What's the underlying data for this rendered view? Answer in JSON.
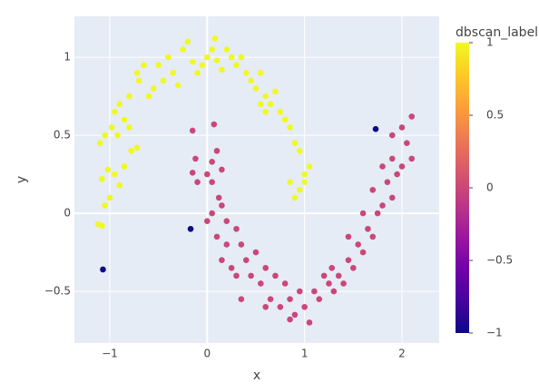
{
  "chart_data": {
    "type": "scatter",
    "xlabel": "x",
    "ylabel": "y",
    "xlim": [
      -1.363,
      2.382
    ],
    "ylim": [
      -0.831,
      1.262
    ],
    "xticks": [
      {
        "value": -1,
        "label": "−1"
      },
      0,
      1,
      2
    ],
    "yticks": [
      {
        "value": -0.5,
        "label": "−0.5"
      },
      0,
      0.5,
      1
    ],
    "grid": true,
    "background": "#e5ecf6",
    "x": [
      -1.12,
      -1.08,
      -1.05,
      -1.0,
      -1.08,
      -1.02,
      -0.95,
      -0.9,
      -0.85,
      -1.1,
      -1.05,
      -0.98,
      -0.92,
      -0.85,
      -0.8,
      -0.72,
      -0.78,
      -0.95,
      -0.9,
      -0.8,
      -0.7,
      -0.65,
      -0.72,
      -0.6,
      -0.55,
      -0.5,
      -0.45,
      -0.4,
      -0.35,
      -0.3,
      -0.25,
      -0.2,
      -0.15,
      -0.1,
      -0.05,
      0,
      0.05,
      0.08,
      0.1,
      0.15,
      0.2,
      0.25,
      0.3,
      0.35,
      0.4,
      0.45,
      0.5,
      0.55,
      0.6,
      0.65,
      0.7,
      0.75,
      0.8,
      0.85,
      0.9,
      0.95,
      1.05,
      1.0,
      0.95,
      0.85,
      0.9,
      1.0,
      0.6,
      0.55,
      -0.15,
      0.07,
      -0.12,
      -0.15,
      0,
      0.05,
      0.15,
      -0.1,
      0.12,
      0.05,
      0.15,
      0.2,
      0,
      0.1,
      0.2,
      0.3,
      0.35,
      0.15,
      0.25,
      0.3,
      0.4,
      0.45,
      0.5,
      0.55,
      0.6,
      0.65,
      0.7,
      0.75,
      0.8,
      0.85,
      0.9,
      0.95,
      1.0,
      1.05,
      1.1,
      1.15,
      1.2,
      1.25,
      1.3,
      1.35,
      1.4,
      1.45,
      1.5,
      1.55,
      1.6,
      1.65,
      1.7,
      1.75,
      1.8,
      1.7,
      1.85,
      1.9,
      1.95,
      2.0,
      1.9,
      2.05,
      2.1,
      2.0,
      2.1,
      1.9,
      1.8,
      1.6,
      1.45,
      0.35,
      0.6,
      0.85,
      1.28,
      0.1,
      0.05,
      1.73,
      -0.17,
      -1.07
    ],
    "y": [
      -0.07,
      -0.08,
      0.05,
      0.1,
      0.22,
      0.28,
      0.25,
      0.18,
      0.3,
      0.45,
      0.5,
      0.55,
      0.5,
      0.6,
      0.55,
      0.42,
      0.4,
      0.65,
      0.7,
      0.75,
      0.85,
      0.95,
      0.9,
      0.75,
      0.8,
      0.95,
      0.85,
      1.0,
      0.9,
      0.82,
      1.05,
      1.1,
      0.97,
      0.9,
      0.95,
      1.0,
      1.05,
      1.12,
      0.98,
      0.92,
      1.05,
      1.0,
      0.95,
      1.0,
      0.9,
      0.85,
      0.8,
      0.9,
      0.75,
      0.7,
      0.78,
      0.65,
      0.6,
      0.55,
      0.45,
      0.4,
      0.3,
      0.2,
      0.15,
      0.2,
      0.1,
      0.25,
      0.65,
      0.7,
      0.53,
      0.57,
      0.35,
      0.26,
      0.25,
      0.2,
      0.28,
      0.2,
      0.1,
      0,
      0.05,
      -0.05,
      -0.05,
      -0.15,
      -0.2,
      -0.1,
      -0.2,
      -0.3,
      -0.35,
      -0.4,
      -0.3,
      -0.4,
      -0.25,
      -0.45,
      -0.35,
      -0.55,
      -0.4,
      -0.6,
      -0.45,
      -0.55,
      -0.65,
      -0.5,
      -0.6,
      -0.7,
      -0.5,
      -0.55,
      -0.4,
      -0.45,
      -0.5,
      -0.4,
      -0.45,
      -0.3,
      -0.35,
      -0.2,
      -0.25,
      -0.1,
      -0.15,
      0,
      0.05,
      0.15,
      0.2,
      0.1,
      0.25,
      0.3,
      0.35,
      0.45,
      0.35,
      0.55,
      0.62,
      0.5,
      0.3,
      0,
      -0.15,
      -0.55,
      -0.6,
      -0.68,
      -0.35,
      0.4,
      0.33,
      0.54,
      -0.1,
      -0.36
    ],
    "dbscan_label": [
      1,
      1,
      1,
      1,
      1,
      1,
      1,
      1,
      1,
      1,
      1,
      1,
      1,
      1,
      1,
      1,
      1,
      1,
      1,
      1,
      1,
      1,
      1,
      1,
      1,
      1,
      1,
      1,
      1,
      1,
      1,
      1,
      1,
      1,
      1,
      1,
      1,
      1,
      1,
      1,
      1,
      1,
      1,
      1,
      1,
      1,
      1,
      1,
      1,
      1,
      1,
      1,
      1,
      1,
      1,
      1,
      1,
      1,
      1,
      1,
      1,
      1,
      1,
      1,
      0,
      0,
      0,
      0,
      0,
      0,
      0,
      0,
      0,
      0,
      0,
      0,
      0,
      0,
      0,
      0,
      0,
      0,
      0,
      0,
      0,
      0,
      0,
      0,
      0,
      0,
      0,
      0,
      0,
      0,
      0,
      0,
      0,
      0,
      0,
      0,
      0,
      0,
      0,
      0,
      0,
      0,
      0,
      0,
      0,
      0,
      0,
      0,
      0,
      0,
      0,
      0,
      0,
      0,
      0,
      0,
      0,
      0,
      0,
      0,
      0,
      0,
      0,
      0,
      0,
      0,
      0,
      0,
      0,
      -1,
      -1,
      -1
    ],
    "colorbar": {
      "title": "dbscan_label",
      "lim": [
        -1,
        1
      ],
      "ticks": [
        {
          "value": -1,
          "label": "−1"
        },
        {
          "value": -0.5,
          "label": "−0.5"
        },
        0,
        0.5,
        1
      ],
      "colorscale": [
        [
          0,
          "#0d0887"
        ],
        [
          0.111,
          "#46039f"
        ],
        [
          0.222,
          "#7201a8"
        ],
        [
          0.333,
          "#9c179e"
        ],
        [
          0.444,
          "#bd3786"
        ],
        [
          0.556,
          "#d8576b"
        ],
        [
          0.667,
          "#ed7953"
        ],
        [
          0.778,
          "#fb9f3a"
        ],
        [
          0.889,
          "#fdca26"
        ],
        [
          1,
          "#f0f921"
        ]
      ]
    }
  }
}
